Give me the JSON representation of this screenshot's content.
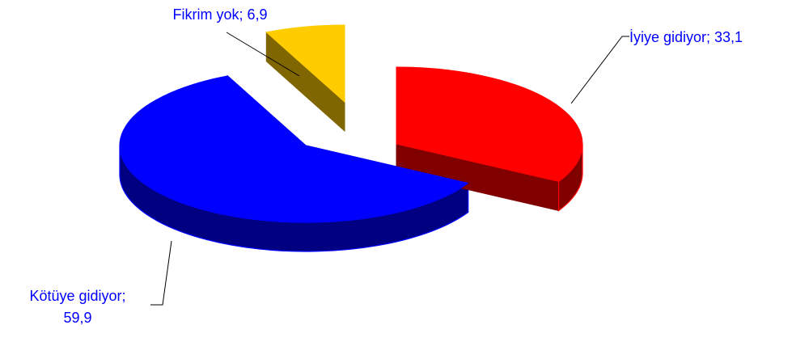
{
  "chart_data": {
    "type": "pie",
    "style": "3d-exploded",
    "categories": [
      "İyiye gidiyor",
      "Kötüye gidiyor",
      "Fikrim yok"
    ],
    "values": [
      33.1,
      59.9,
      6.9
    ],
    "labels": [
      "İyiye gidiyor; 33,1",
      "Kötüye gidiyor; 59,9",
      "Fikrim yok; 6,9"
    ],
    "colors": {
      "top": [
        "#ff0000",
        "#0000ff",
        "#ffcc00"
      ],
      "side": [
        "#800000",
        "#000080",
        "#806600"
      ],
      "label_text": "#0000ff",
      "leader_line": "#000000"
    },
    "legend": "none",
    "title": ""
  }
}
